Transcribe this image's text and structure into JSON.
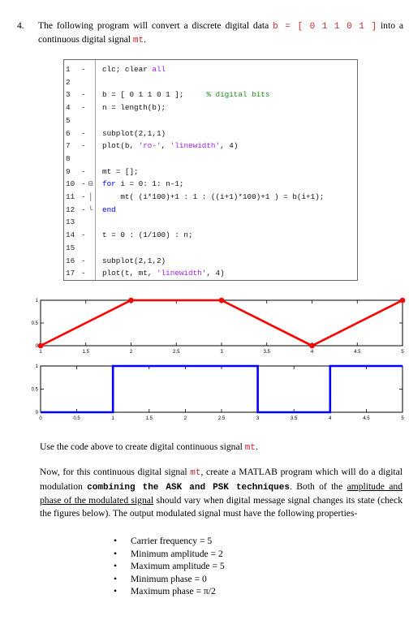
{
  "question": {
    "number": "4.",
    "text_before": "The following program will convert a discrete digital data ",
    "data_expr": "b = [ 0 1 1 0 1 ]",
    "text_mid": " into a continuous digital signal ",
    "signal_name": "mt",
    "text_end": "."
  },
  "code": {
    "lines": [
      {
        "num": "1",
        "dash": "-",
        "fold": "",
        "parts": [
          {
            "t": "clc; clear "
          },
          {
            "t": "all",
            "c": "str"
          }
        ]
      },
      {
        "num": "2",
        "dash": "",
        "fold": "",
        "parts": []
      },
      {
        "num": "3",
        "dash": "-",
        "fold": "",
        "parts": [
          {
            "t": "b = [ 0 1 1 0 1 ];     "
          },
          {
            "t": "% digital bits",
            "c": "cm"
          }
        ]
      },
      {
        "num": "4",
        "dash": "-",
        "fold": "",
        "parts": [
          {
            "t": "n = length(b);"
          }
        ]
      },
      {
        "num": "5",
        "dash": "",
        "fold": "",
        "parts": []
      },
      {
        "num": "6",
        "dash": "-",
        "fold": "",
        "parts": [
          {
            "t": "subplot(2,1,1)"
          }
        ]
      },
      {
        "num": "7",
        "dash": "-",
        "fold": "",
        "parts": [
          {
            "t": "plot(b, "
          },
          {
            "t": "'ro-'",
            "c": "str"
          },
          {
            "t": ", "
          },
          {
            "t": "'linewidth'",
            "c": "str"
          },
          {
            "t": ", 4)"
          }
        ]
      },
      {
        "num": "8",
        "dash": "",
        "fold": "",
        "parts": []
      },
      {
        "num": "9",
        "dash": "-",
        "fold": "",
        "parts": [
          {
            "t": "mt = [];"
          }
        ]
      },
      {
        "num": "10",
        "dash": "-",
        "fold": "⊟",
        "parts": [
          {
            "t": "for",
            "c": "kw"
          },
          {
            "t": " i = 0: 1: n-1;"
          }
        ]
      },
      {
        "num": "11",
        "dash": "-",
        "fold": "│",
        "parts": [
          {
            "t": "    mt( (i*100)+1 : 1 : ((i+1)*100)+1 ) = b(i+1);"
          }
        ]
      },
      {
        "num": "12",
        "dash": "-",
        "fold": "└",
        "parts": [
          {
            "t": "end",
            "c": "kw"
          }
        ]
      },
      {
        "num": "13",
        "dash": "",
        "fold": "",
        "parts": []
      },
      {
        "num": "14",
        "dash": "-",
        "fold": "",
        "parts": [
          {
            "t": "t = 0 : (1/100) : n;"
          }
        ]
      },
      {
        "num": "15",
        "dash": "",
        "fold": "",
        "parts": []
      },
      {
        "num": "16",
        "dash": "-",
        "fold": "",
        "parts": [
          {
            "t": "subplot(2,1,2)"
          }
        ]
      },
      {
        "num": "17",
        "dash": "-",
        "fold": "",
        "parts": [
          {
            "t": "plot(t, mt, "
          },
          {
            "t": "'linewidth'",
            "c": "str"
          },
          {
            "t": ", 4)"
          }
        ]
      }
    ]
  },
  "chart_data": [
    {
      "type": "line",
      "x": [
        1,
        2,
        3,
        4,
        5
      ],
      "values": [
        0,
        1,
        1,
        0,
        1
      ],
      "xlim": [
        1,
        5
      ],
      "ylim": [
        0,
        1
      ],
      "xticks": [
        "1",
        "1.5",
        "2",
        "2.5",
        "3",
        "3.5",
        "4",
        "4.5",
        "5"
      ],
      "yticks": [
        "0",
        "0.5",
        "1"
      ],
      "color": "#ff0000",
      "marker": "circle",
      "grid": false
    },
    {
      "type": "line",
      "x": [
        0,
        1,
        1,
        3,
        3,
        4,
        4,
        5
      ],
      "values": [
        0,
        0,
        1,
        1,
        0,
        0,
        1,
        1
      ],
      "xlim": [
        0,
        5
      ],
      "ylim": [
        0,
        1
      ],
      "xticks": [
        "0",
        "0.5",
        "1",
        "1.5",
        "2",
        "2.5",
        "3",
        "3.5",
        "4",
        "4.5",
        "5"
      ],
      "yticks": [
        "0",
        "0.5",
        "1"
      ],
      "color": "#0000ff",
      "grid": false
    }
  ],
  "instruction": {
    "text_before": "Use the code above to create digital continuous signal ",
    "signal_name": "mt",
    "text_end": "."
  },
  "paragraph": {
    "p1": "Now, for this continuous digital signal ",
    "signal_name": "mt",
    "p2": ", create a MATLAB program which will do a digital modulation ",
    "bold_part": "combining the ASK and PSK techniques",
    "p3": ". Both of the ",
    "underlined": "amplitude and phase of the modulated signal",
    "p4": " should vary when digital message signal changes its state (check the figures below). The output modulated signal must have the following properties-"
  },
  "properties": [
    "Carrier frequency = 5",
    "Minimum amplitude = 2",
    "Maximum amplitude = 5",
    "Minimum phase = 0",
    "Maximum phase = π/2"
  ]
}
